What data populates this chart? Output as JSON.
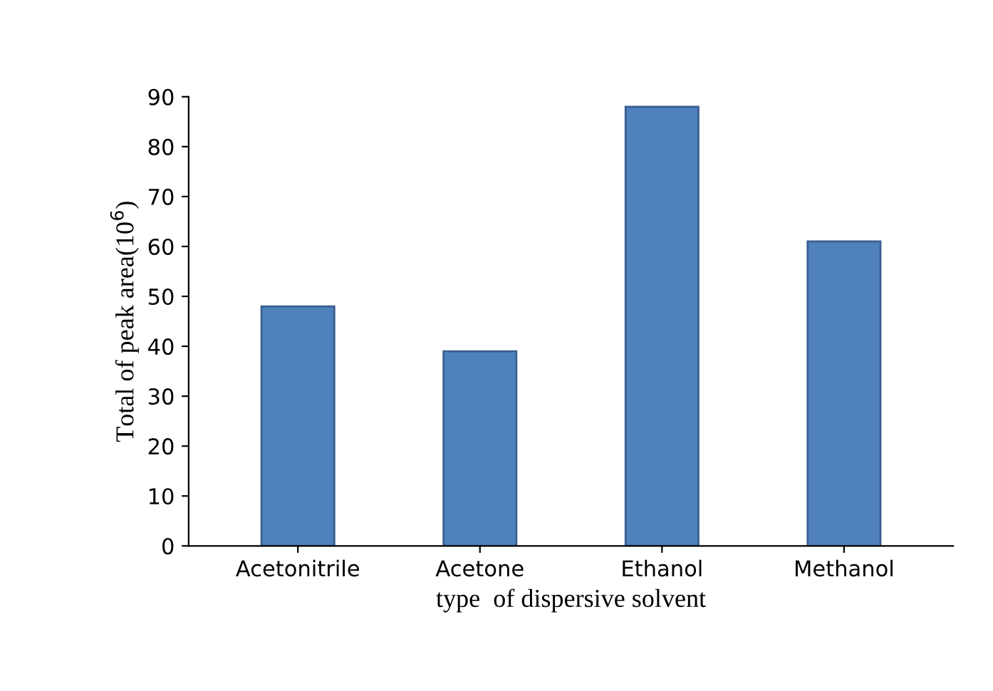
{
  "chart_data": {
    "type": "bar",
    "categories": [
      "Acetonitrile",
      "Acetone",
      "Ethanol",
      "Methanol"
    ],
    "values": [
      48,
      39,
      88,
      61
    ],
    "color": "#4f81bd",
    "xlabel": "type  of dispersive solvent",
    "ylabel": "Total of peak area(10$^{6}$)",
    "ylim": [
      0,
      90
    ],
    "yticks": [
      0,
      10,
      20,
      30,
      40,
      50,
      60,
      70,
      80,
      90
    ],
    "grid": false,
    "legend": false
  }
}
